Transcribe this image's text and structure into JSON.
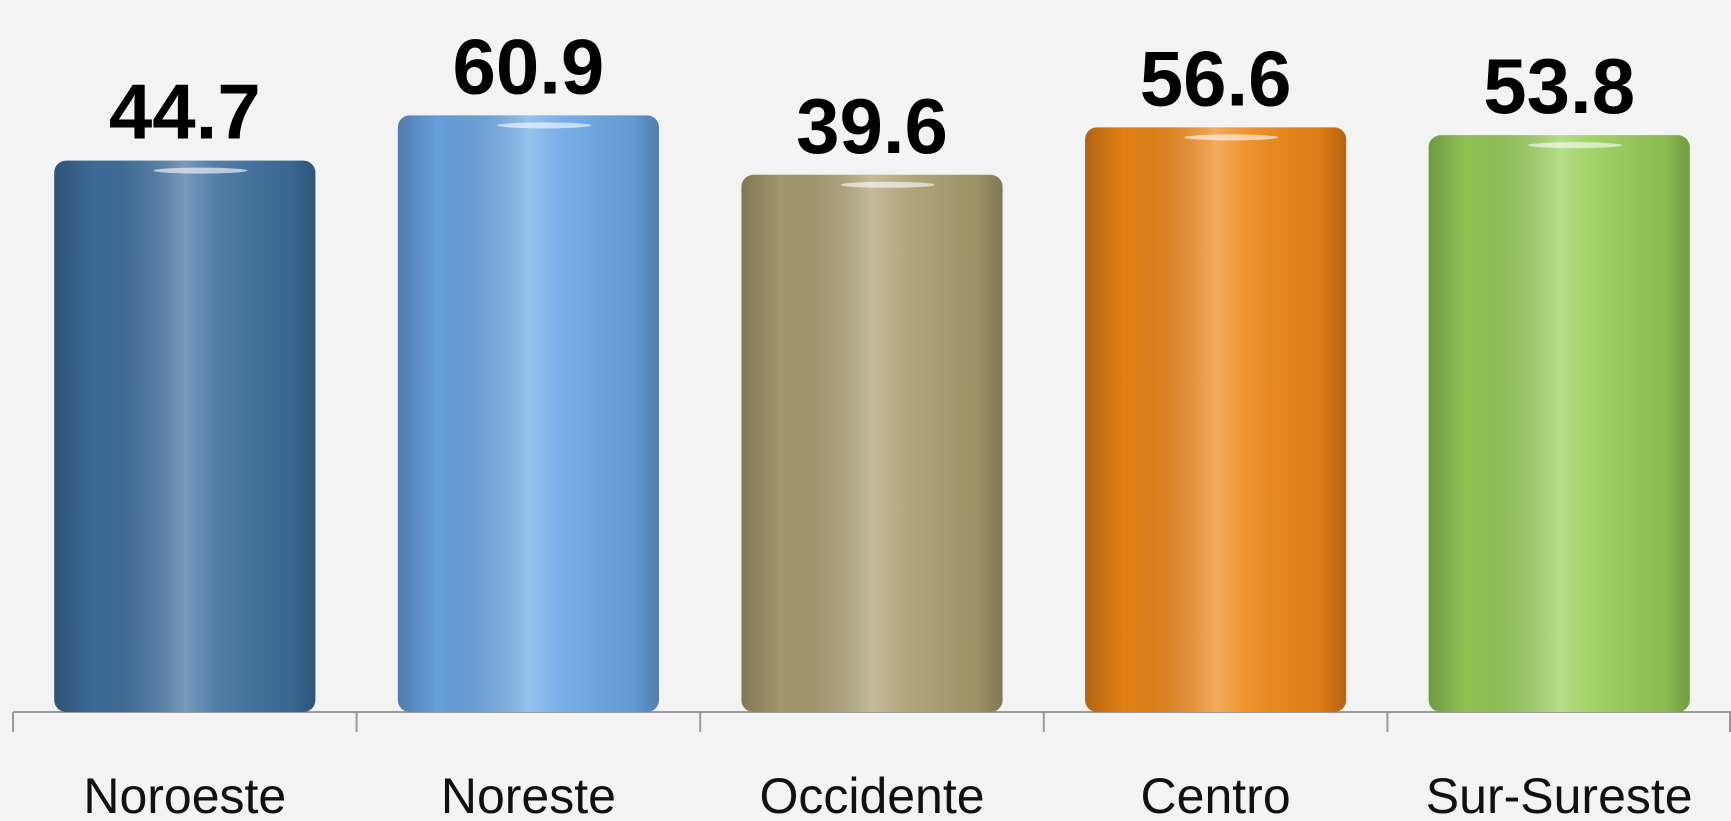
{
  "chart_data": {
    "type": "bar",
    "categories": [
      "Noroeste",
      "Noreste",
      "Occidente",
      "Centro",
      "Sur-Sureste"
    ],
    "values": [
      44.7,
      60.9,
      39.6,
      56.6,
      53.8
    ],
    "colors": [
      "#3f6f9f",
      "#6ba7e6",
      "#a9a070",
      "#ee8616",
      "#98cd58"
    ],
    "ylim": [
      -153,
      70
    ]
  }
}
